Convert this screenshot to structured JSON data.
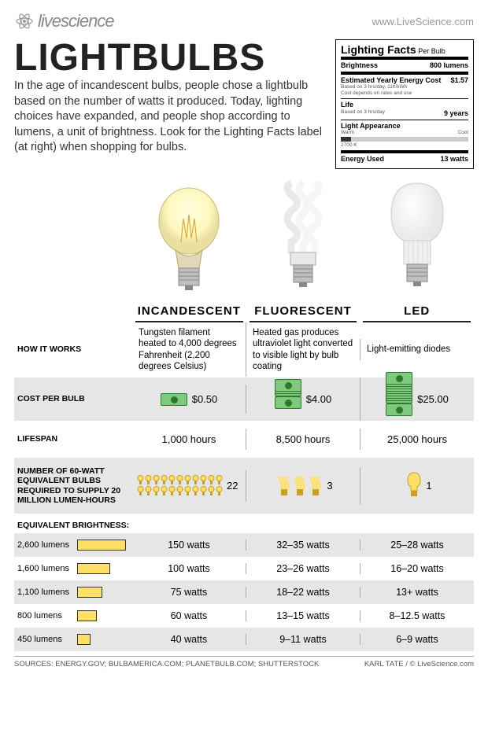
{
  "header": {
    "logo": "livescience",
    "url": "www.LiveScience.com"
  },
  "title": "LIGHTBULBS",
  "intro": "In the age of incandescent bulbs, people chose a lightbulb based on the number of watts it produced. Today, lighting choices have expanded, and people shop according to lumens, a unit of brightness. Look for the Lighting Facts label (at right) when shopping for bulbs.",
  "facts": {
    "heading": "Lighting Facts",
    "per": "Per Bulb",
    "brightness_label": "Brightness",
    "brightness_val": "800 lumens",
    "yearly_label": "Estimated Yearly Energy Cost",
    "yearly_val": "$1.57",
    "yearly_note1": "Based on 3 hrs/day, 11¢/kWh",
    "yearly_note2": "Cost depends on rates and use",
    "life_label": "Life",
    "life_note": "Based on 3 hrs/day",
    "life_val": "9 years",
    "appear_label": "Light Appearance",
    "appear_warm": "Warm",
    "appear_cool": "Cool",
    "appear_val": "2700 K",
    "energy_label": "Energy Used",
    "energy_val": "13 watts"
  },
  "types": [
    "INCANDESCENT",
    "FLUORESCENT",
    "LED"
  ],
  "rows": {
    "how_label": "HOW IT WORKS",
    "how": [
      "Tungsten filament heated to 4,000 degrees Fahrenheit (2,200 degrees Celsius)",
      "Heated gas produces ultraviolet light converted to visible light by bulb coating",
      "Light-emitting diodes"
    ],
    "cost_label": "COST PER BULB",
    "cost": [
      "$0.50",
      "$4.00",
      "$25.00"
    ],
    "cost_bills": [
      1,
      4,
      10
    ],
    "life_label": "LIFESPAN",
    "life": [
      "1,000 hours",
      "8,500 hours",
      "25,000 hours"
    ],
    "bulbs_label": "NUMBER OF 60-WATT EQUIVALENT BULBS REQUIRED TO SUPPLY 20 MILLION LUMEN-HOURS",
    "bulbs": [
      "22",
      "3",
      "1"
    ]
  },
  "eq_heading": "EQUIVALENT BRIGHTNESS:",
  "eq": [
    {
      "lumens": "2,600 lumens",
      "bar": 62,
      "inc": "150 watts",
      "flu": "32–35 watts",
      "led": "25–28 watts"
    },
    {
      "lumens": "1,600 lumens",
      "bar": 42,
      "inc": "100 watts",
      "flu": "23–26 watts",
      "led": "16–20 watts"
    },
    {
      "lumens": "1,100 lumens",
      "bar": 32,
      "inc": "75 watts",
      "flu": "18–22 watts",
      "led": "13+ watts"
    },
    {
      "lumens": "800 lumens",
      "bar": 25,
      "inc": "60 watts",
      "flu": "13–15 watts",
      "led": "8–12.5 watts"
    },
    {
      "lumens": "450 lumens",
      "bar": 17,
      "inc": "40 watts",
      "flu": "9–11 watts",
      "led": "6–9 watts"
    }
  ],
  "footer": {
    "sources": "SOURCES: ENERGY.GOV; BULBAMERICA.COM; PLANETBULB.COM; SHUTTERSTOCK",
    "credit": "KARL TATE / © LiveScience.com"
  },
  "colors": {
    "bar_fill": "#ffe066",
    "bill_fill": "#7fc97f",
    "shade": "#e6e6e6"
  }
}
